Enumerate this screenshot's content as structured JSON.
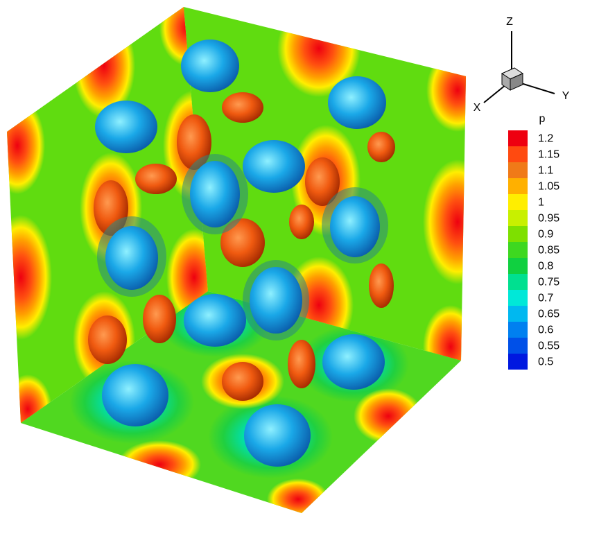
{
  "axes": {
    "x": "X",
    "y": "Y",
    "z": "Z"
  },
  "legend": {
    "title": "p",
    "levels": [
      {
        "label": "1.2",
        "color": "#ee0010"
      },
      {
        "label": "1.15",
        "color": "#ff4a10"
      },
      {
        "label": "1.1",
        "color": "#f07a18"
      },
      {
        "label": "1.05",
        "color": "#ffb000"
      },
      {
        "label": "1",
        "color": "#ffee00"
      },
      {
        "label": "0.95",
        "color": "#c8f000"
      },
      {
        "label": "0.9",
        "color": "#7ee000"
      },
      {
        "label": "0.85",
        "color": "#3ed820"
      },
      {
        "label": "0.8",
        "color": "#10d040"
      },
      {
        "label": "0.75",
        "color": "#00e090"
      },
      {
        "label": "0.7",
        "color": "#00e8d8"
      },
      {
        "label": "0.65",
        "color": "#00b8f0"
      },
      {
        "label": "0.6",
        "color": "#0080f0"
      },
      {
        "label": "0.55",
        "color": "#0050e8"
      },
      {
        "label": "0.5",
        "color": "#0018e0"
      }
    ]
  }
}
